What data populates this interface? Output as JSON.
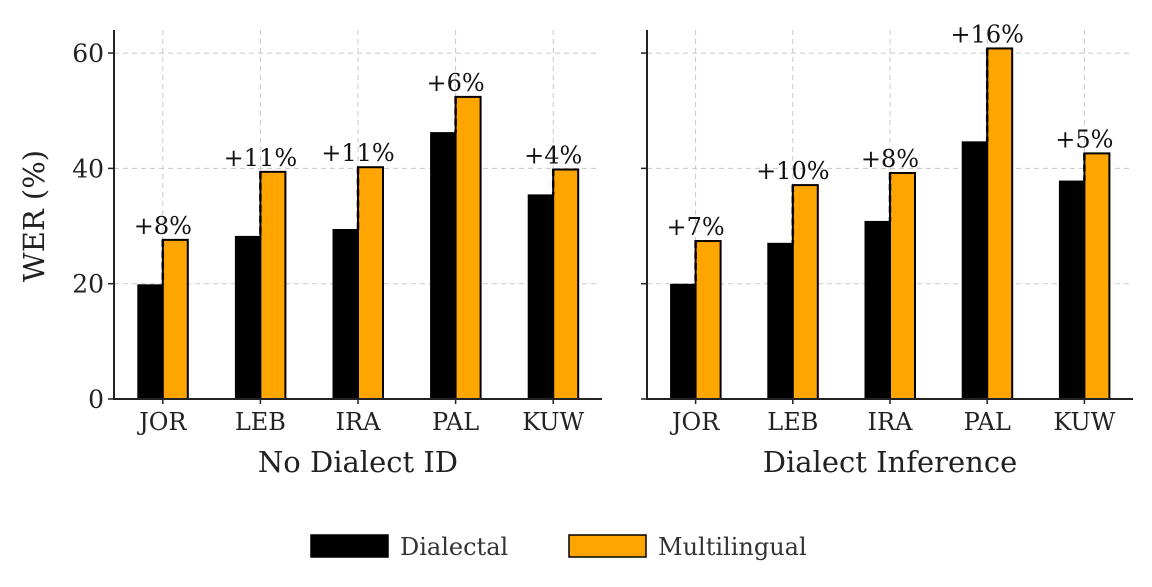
{
  "chart_data": {
    "type": "bar",
    "ylabel": "WER (%)",
    "ylim": [
      0,
      64
    ],
    "yticks": [
      "0",
      "20",
      "40",
      "60"
    ],
    "grid": true,
    "legend_position": "bottom-center",
    "legend": [
      "Dialectal",
      "Multilingual"
    ],
    "colors": {
      "Dialectal": "#000000",
      "Multilingual": "#ffa500"
    },
    "panels": [
      {
        "xlabel": "No Dialect ID",
        "categories": [
          "JOR",
          "LEB",
          "IRA",
          "PAL",
          "KUW"
        ],
        "series": [
          {
            "name": "Dialectal",
            "values": [
              19.8,
              28.2,
              29.4,
              46.2,
              35.4
            ]
          },
          {
            "name": "Multilingual",
            "values": [
              27.6,
              39.4,
              40.2,
              52.4,
              39.8
            ]
          }
        ],
        "annotations": [
          "+8%",
          "+11%",
          "+11%",
          "+6%",
          "+4%"
        ]
      },
      {
        "xlabel": "Dialect Inference",
        "categories": [
          "JOR",
          "LEB",
          "IRA",
          "PAL",
          "KUW"
        ],
        "series": [
          {
            "name": "Dialectal",
            "values": [
              19.9,
              27.0,
              30.8,
              44.6,
              37.8
            ]
          },
          {
            "name": "Multilingual",
            "values": [
              27.4,
              37.1,
              39.2,
              60.8,
              42.6
            ]
          }
        ],
        "annotations": [
          "+7%",
          "+10%",
          "+8%",
          "+16%",
          "+5%"
        ]
      }
    ]
  }
}
